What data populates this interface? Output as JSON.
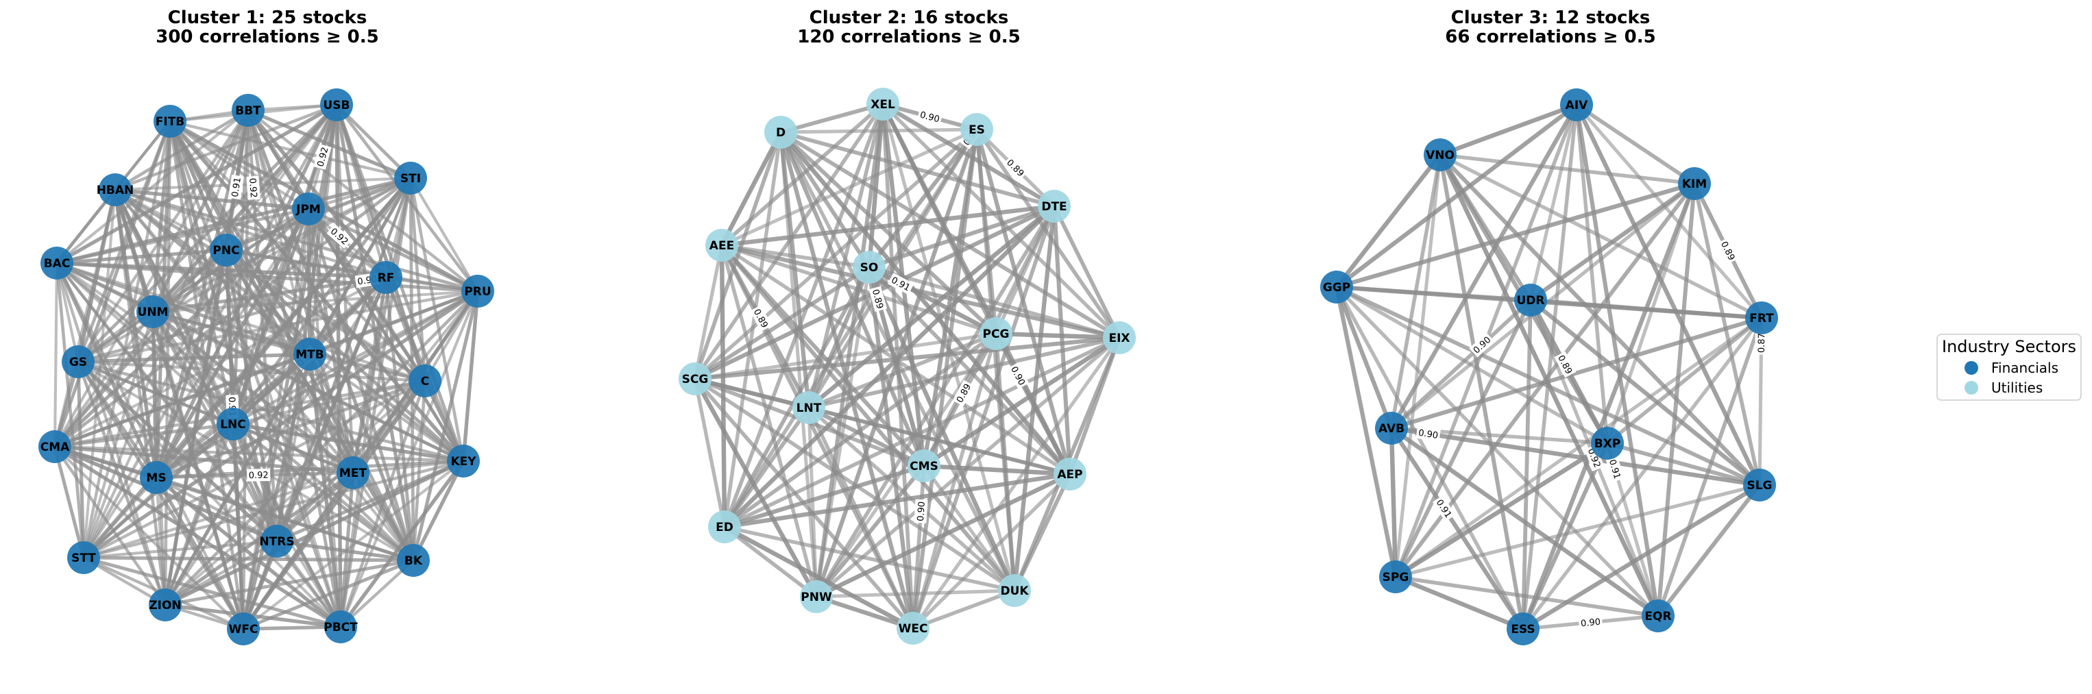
{
  "colors": {
    "financials": "#1f77b4",
    "utilities": "#9fd7e3",
    "edge": "#8c8c8c"
  },
  "legend": {
    "title": "Industry Sectors",
    "items": [
      {
        "label": "Financials",
        "sector": "financials"
      },
      {
        "label": "Utilities",
        "sector": "utilities"
      }
    ]
  },
  "clusters": [
    {
      "title_line1": "Cluster 1: 25 stocks",
      "title_line2": "300 correlations ≥ 0.5",
      "sector": "financials",
      "nodes": [
        "FITB",
        "BBT",
        "USB",
        "HBAN",
        "STI",
        "JPM",
        "PNC",
        "BAC",
        "RF",
        "PRU",
        "UNM",
        "MTB",
        "GS",
        "C",
        "LNC",
        "CMA",
        "KEY",
        "MS",
        "MET",
        "NTRS",
        "STT",
        "BK",
        "ZION",
        "WFC",
        "PBCT"
      ],
      "edge_labels": [
        "0.92",
        "0.91",
        "0.92",
        "0.90",
        "0.92",
        "0.90",
        "0.91",
        "0.92"
      ]
    },
    {
      "title_line1": "Cluster 2: 16 stocks",
      "title_line2": "120 correlations ≥ 0.5",
      "sector": "utilities",
      "nodes": [
        "XEL",
        "D",
        "ES",
        "DTE",
        "AEE",
        "SO",
        "PCG",
        "EIX",
        "SCG",
        "LNT",
        "CMS",
        "AEP",
        "ED",
        "PNW",
        "DUK",
        "WEC"
      ],
      "edge_labels": [
        "0.90",
        "0.91",
        "0.89",
        "0.91",
        "0.89",
        "0.89",
        "0.89",
        "0.90",
        "0.90"
      ]
    },
    {
      "title_line1": "Cluster 3: 12 stocks",
      "title_line2": "66 correlations ≥ 0.5",
      "sector": "financials",
      "nodes": [
        "AIV",
        "VNO",
        "KIM",
        "GGP",
        "UDR",
        "FRT",
        "AVB",
        "BXP",
        "SLG",
        "SPG",
        "ESS",
        "EQR"
      ],
      "edge_labels": [
        "0.89",
        "0.89",
        "0.90",
        "0.87",
        "0.90",
        "0.91",
        "0.91",
        "0.92",
        "0.90"
      ]
    }
  ]
}
